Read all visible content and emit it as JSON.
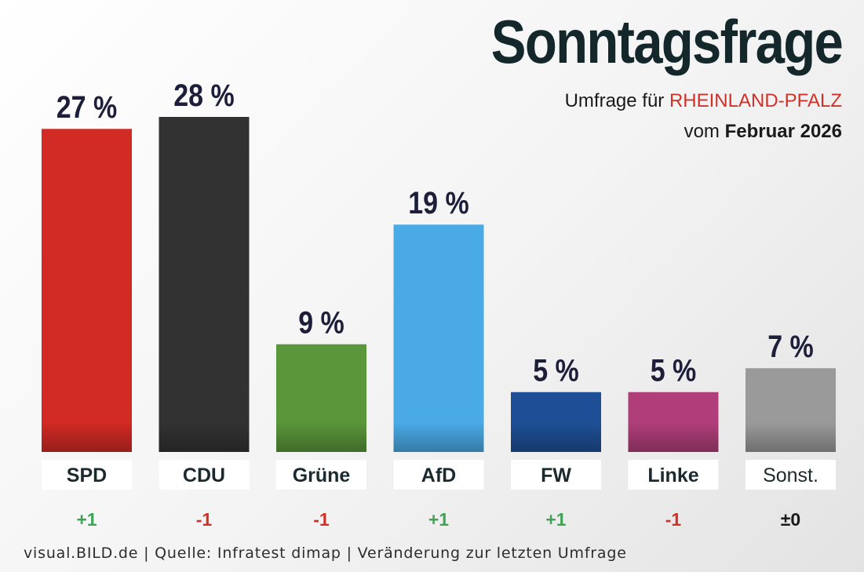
{
  "header": {
    "title": "Sonntagsfrage",
    "subtitle_prefix": "Umfrage für",
    "subtitle_region": "RHEINLAND-PFALZ",
    "subtitle2_prefix": "vom",
    "subtitle2_date": "Februar 2026"
  },
  "footer": {
    "text": "visual.BILD.de | Quelle: Infratest dimap | Veränderung zur letzten Umfrage"
  },
  "colors": {
    "title": "#14282c",
    "region": "#d0322a",
    "positive": "#3fa456",
    "negative": "#d0322a",
    "neutral": "#1a1a1a"
  },
  "chart_data": {
    "type": "bar",
    "title": "Sonntagsfrage",
    "categories": [
      "SPD",
      "CDU",
      "Grüne",
      "AfD",
      "FW",
      "Linke",
      "Sonst."
    ],
    "values": [
      27,
      28,
      9,
      19,
      5,
      5,
      7
    ],
    "value_labels": [
      "27 %",
      "28 %",
      "9 %",
      "19 %",
      "5 %",
      "5 %",
      "7 %"
    ],
    "changes": [
      "+1",
      "-1",
      "-1",
      "+1",
      "+1",
      "-1",
      "±0"
    ],
    "change_signs": [
      "pos",
      "neg",
      "neg",
      "pos",
      "pos",
      "neg",
      "zero"
    ],
    "bar_colors": [
      "#d22a24",
      "#323232",
      "#5a963a",
      "#4aaae6",
      "#1e4f96",
      "#b03e7a",
      "#9a9a9a"
    ],
    "ylim": [
      0,
      28
    ],
    "grid": false,
    "legend": "none"
  }
}
